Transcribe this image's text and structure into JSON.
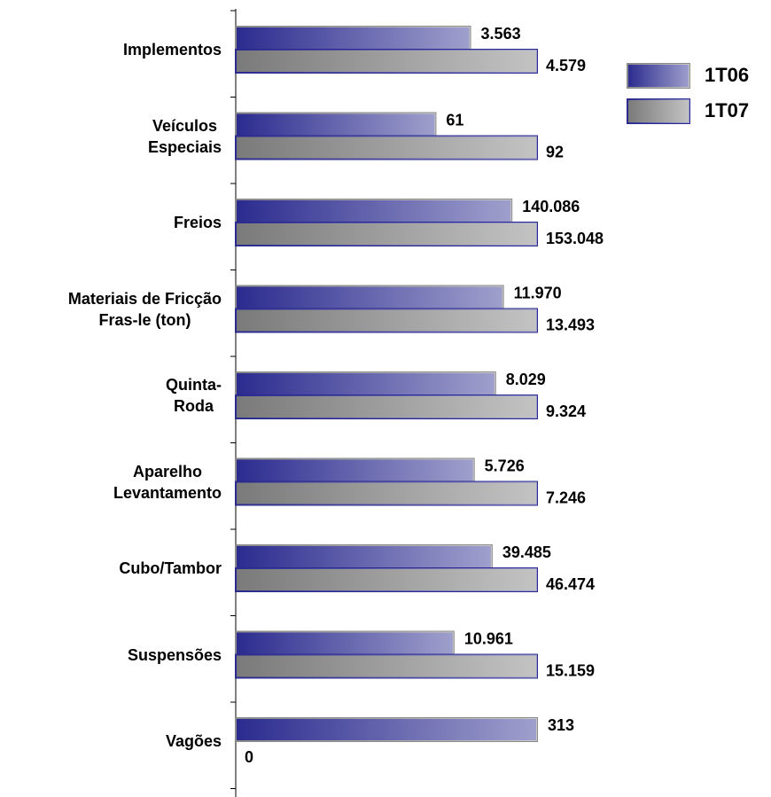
{
  "chart_data": {
    "type": "barh",
    "categories": [
      "Implementos",
      "Veículos\nEspeciais",
      "Freios",
      "Materiais de Fricção\nFras-le (ton)",
      "Quinta-\nRoda",
      "Aparelho\nLevantamento",
      "Cubo/Tambor",
      "Suspensões",
      "Vagões"
    ],
    "series": [
      {
        "name": "1T06",
        "color": "#2b2b8f",
        "edgecolor": "#8a8a8a",
        "values": [
          3563,
          61,
          140086,
          11970,
          8029,
          5726,
          39485,
          10961,
          313
        ],
        "value_labels": [
          "3.563",
          "61",
          "140.086",
          "11.970",
          "8.029",
          "5.726",
          "39.485",
          "10.961",
          "313"
        ]
      },
      {
        "name": "1T07",
        "color": "#7a7a7a",
        "edgecolor": "#2b2b8f",
        "values": [
          4579,
          92,
          153048,
          13493,
          9324,
          7246,
          46474,
          15159,
          0
        ],
        "value_labels": [
          "4.579",
          "92",
          "153.048",
          "13.493",
          "9.324",
          "7.246",
          "46.474",
          "15.159",
          "0"
        ]
      }
    ],
    "legend": "upper right"
  }
}
